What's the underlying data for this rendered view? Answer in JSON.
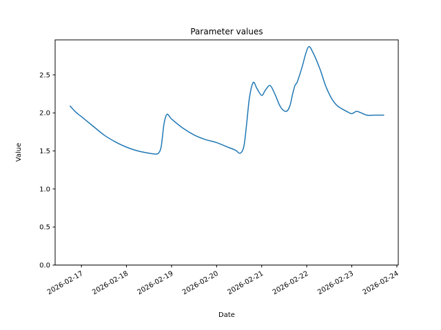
{
  "window": {
    "background": "#ffffff",
    "text_color": "#000000",
    "spine_color": "#000000"
  },
  "chart_data": {
    "type": "line",
    "title": "Parameter values",
    "xlabel": "Date",
    "ylabel": "Value",
    "grid": false,
    "legend": null,
    "line_color": "#1f77b4",
    "line_width": 1.5,
    "xlim": [
      "2026-02-16T10:00",
      "2026-02-24T00:45"
    ],
    "ylim": [
      0,
      2.96
    ],
    "x_ticks": [
      "2026-02-17",
      "2026-02-18",
      "2026-02-19",
      "2026-02-20",
      "2026-02-21",
      "2026-02-22",
      "2026-02-23",
      "2026-02-24"
    ],
    "x_tick_rotation": 30,
    "y_ticks": [
      0.0,
      0.5,
      1.0,
      1.5,
      2.0,
      2.5
    ],
    "series": [
      {
        "name": "parameter-values",
        "points": [
          [
            "2026-02-16T18:00",
            2.09
          ],
          [
            "2026-02-16T21:00",
            2.01
          ],
          [
            "2026-02-17T00:00",
            1.95
          ],
          [
            "2026-02-17T06:00",
            1.83
          ],
          [
            "2026-02-17T12:00",
            1.71
          ],
          [
            "2026-02-17T18:00",
            1.62
          ],
          [
            "2026-02-18T00:00",
            1.55
          ],
          [
            "2026-02-18T06:00",
            1.5
          ],
          [
            "2026-02-18T12:00",
            1.47
          ],
          [
            "2026-02-18T15:00",
            1.46
          ],
          [
            "2026-02-18T17:00",
            1.47
          ],
          [
            "2026-02-18T18:30",
            1.56
          ],
          [
            "2026-02-18T20:00",
            1.86
          ],
          [
            "2026-02-18T21:30",
            1.98
          ],
          [
            "2026-02-18T23:00",
            1.95
          ],
          [
            "2026-02-19T00:00",
            1.92
          ],
          [
            "2026-02-19T06:00",
            1.8
          ],
          [
            "2026-02-19T12:00",
            1.71
          ],
          [
            "2026-02-19T18:00",
            1.65
          ],
          [
            "2026-02-20T00:00",
            1.61
          ],
          [
            "2026-02-20T06:00",
            1.55
          ],
          [
            "2026-02-20T10:00",
            1.51
          ],
          [
            "2026-02-20T12:30",
            1.47
          ],
          [
            "2026-02-20T14:30",
            1.56
          ],
          [
            "2026-02-20T16:00",
            1.86
          ],
          [
            "2026-02-20T17:30",
            2.2
          ],
          [
            "2026-02-20T19:30",
            2.4
          ],
          [
            "2026-02-20T21:30",
            2.32
          ],
          [
            "2026-02-21T00:00",
            2.23
          ],
          [
            "2026-02-21T02:00",
            2.3
          ],
          [
            "2026-02-21T04:30",
            2.36
          ],
          [
            "2026-02-21T07:00",
            2.25
          ],
          [
            "2026-02-21T10:00",
            2.08
          ],
          [
            "2026-02-21T13:00",
            2.02
          ],
          [
            "2026-02-21T15:00",
            2.09
          ],
          [
            "2026-02-21T16:30",
            2.25
          ],
          [
            "2026-02-21T17:45",
            2.36
          ],
          [
            "2026-02-21T19:00",
            2.41
          ],
          [
            "2026-02-21T21:30",
            2.6
          ],
          [
            "2026-02-21T23:15",
            2.76
          ],
          [
            "2026-02-22T01:00",
            2.87
          ],
          [
            "2026-02-22T03:00",
            2.81
          ],
          [
            "2026-02-22T07:00",
            2.58
          ],
          [
            "2026-02-22T10:00",
            2.36
          ],
          [
            "2026-02-22T13:00",
            2.2
          ],
          [
            "2026-02-22T16:00",
            2.1
          ],
          [
            "2026-02-22T19:00",
            2.05
          ],
          [
            "2026-02-22T22:00",
            2.01
          ],
          [
            "2026-02-23T00:00",
            1.99
          ],
          [
            "2026-02-23T02:30",
            2.02
          ],
          [
            "2026-02-23T05:00",
            2.0
          ],
          [
            "2026-02-23T08:00",
            1.97
          ],
          [
            "2026-02-23T12:00",
            1.97
          ],
          [
            "2026-02-23T17:00",
            1.97
          ]
        ]
      }
    ]
  }
}
